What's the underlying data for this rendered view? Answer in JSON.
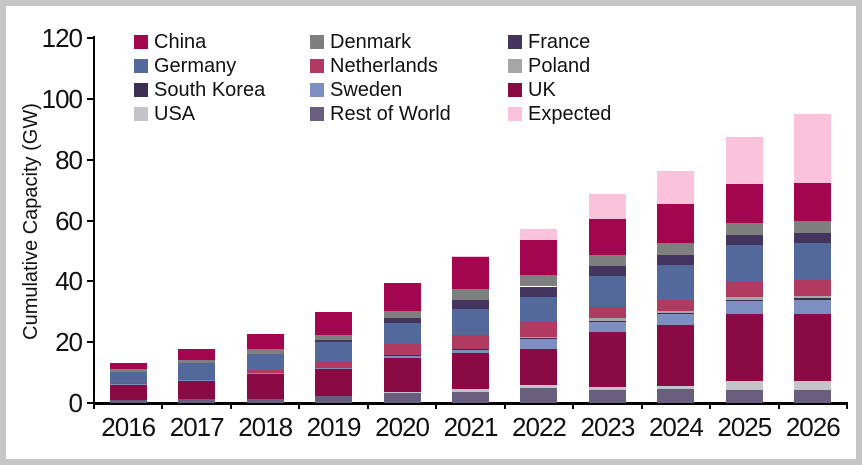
{
  "frame": {
    "border_color": "#c6c6c6",
    "background": "#ffffff"
  },
  "chart_data": {
    "type": "bar",
    "stacked": true,
    "title": "",
    "xlabel": "",
    "ylabel": "Cumulative Capacity (GW)",
    "ylim": [
      0,
      120
    ],
    "yticks": [
      0,
      20,
      40,
      60,
      80,
      100,
      120
    ],
    "grid": false,
    "legend_position": "top-inside, 3 columns",
    "categories": [
      "2016",
      "2017",
      "2018",
      "2019",
      "2020",
      "2021",
      "2022",
      "2023",
      "2024",
      "2025",
      "2026"
    ],
    "series": [
      {
        "name": "China",
        "color": "#A3064F",
        "values": [
          2.0,
          3.6,
          5.2,
          7.5,
          9.0,
          10.5,
          11.6,
          11.6,
          12.7,
          12.7,
          12.5
        ]
      },
      {
        "name": "Denmark",
        "color": "#7F7F7F",
        "values": [
          1.1,
          1.1,
          1.5,
          1.7,
          2.6,
          3.6,
          3.8,
          3.8,
          3.9,
          4.0,
          3.8
        ]
      },
      {
        "name": "France",
        "color": "#43355D",
        "values": [
          0,
          0,
          0,
          0.9,
          1.6,
          3.0,
          3.4,
          3.3,
          3.3,
          3.3,
          3.3
        ]
      },
      {
        "name": "Germany",
        "color": "#53699B",
        "values": [
          3.7,
          5.2,
          5.2,
          6.3,
          6.8,
          8.3,
          8.2,
          10.0,
          11.5,
          12.0,
          12.2
        ]
      },
      {
        "name": "Netherlands",
        "color": "#B03A60",
        "values": [
          0.4,
          0.5,
          0.9,
          2.0,
          3.6,
          4.9,
          5.0,
          3.8,
          3.8,
          5.1,
          5.1
        ]
      },
      {
        "name": "Poland",
        "color": "#A6A6A6",
        "values": [
          0,
          0,
          0,
          0,
          0,
          0,
          0.2,
          0.9,
          0.5,
          0.8,
          0.8
        ]
      },
      {
        "name": "South Korea",
        "color": "#3A2E52",
        "values": [
          0,
          0,
          0,
          0,
          0.1,
          0.1,
          0.6,
          0.5,
          0.5,
          0.5,
          0.5
        ]
      },
      {
        "name": "Sweden",
        "color": "#7D8FC0",
        "values": [
          0.2,
          0.2,
          0.2,
          0.5,
          0.9,
          0.9,
          3.0,
          3.0,
          3.7,
          4.1,
          4.6
        ]
      },
      {
        "name": "UK",
        "color": "#8A0A43",
        "values": [
          4.8,
          5.9,
          8.4,
          8.8,
          11.3,
          12.0,
          12.0,
          18.2,
          20.0,
          22.2,
          22.1
        ]
      },
      {
        "name": "USA",
        "color": "#C3C3C8",
        "values": [
          0,
          0,
          0,
          0,
          0.2,
          0.9,
          0.9,
          0.9,
          1.0,
          3.0,
          3.0
        ]
      },
      {
        "name": "Rest of World",
        "color": "#6A5E7F",
        "values": [
          1.1,
          1.3,
          1.4,
          2.3,
          3.3,
          3.7,
          5.0,
          4.4,
          4.5,
          4.2,
          4.3
        ]
      },
      {
        "name": "Expected",
        "color": "#FBC2DC",
        "values": [
          0,
          0,
          0,
          0,
          0,
          0.5,
          3.5,
          8.3,
          11.0,
          15.4,
          22.8
        ]
      }
    ],
    "stack_order_bottom_to_top": [
      "Rest of World",
      "USA",
      "UK",
      "Sweden",
      "South Korea",
      "Poland",
      "Netherlands",
      "Germany",
      "France",
      "Denmark",
      "China",
      "Expected"
    ],
    "totals_by_year": [
      13.3,
      17.8,
      22.8,
      30.0,
      39.4,
      48.4,
      57.2,
      68.7,
      76.4,
      87.3,
      95.0
    ]
  }
}
